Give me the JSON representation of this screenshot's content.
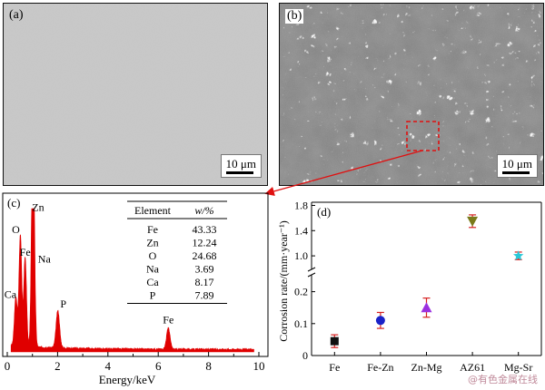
{
  "figure": {
    "panel_a": {
      "letter": "(a)",
      "scale_label": "10 μm"
    },
    "panel_b": {
      "letter": "(b)",
      "scale_label": "10 μm"
    },
    "panel_c": {
      "letter": "(c)"
    },
    "panel_d": {
      "letter": "(d)"
    },
    "watermark": "@有色金属在线"
  },
  "chart_data": [
    {
      "type": "line",
      "xlabel": "Energy/keV",
      "ylabel": "",
      "xlim": [
        0,
        10
      ],
      "x_ticks": [
        "0",
        "2",
        "4",
        "6",
        "8",
        "10"
      ],
      "grid": false,
      "color": "#e00000",
      "peaks": [
        {
          "label": "Ca",
          "x": 0.34,
          "y": 0.34
        },
        {
          "label": "O",
          "x": 0.52,
          "y": 0.78
        },
        {
          "label": "Fe",
          "x": 0.71,
          "y": 0.62
        },
        {
          "label": "Na",
          "x": 1.04,
          "y": 0.7
        },
        {
          "label": "Zn",
          "x": 1.01,
          "y": 0.96
        },
        {
          "label": "P",
          "x": 2.01,
          "y": 0.26
        },
        {
          "label": "Fe",
          "x": 6.4,
          "y": 0.15
        }
      ],
      "table": {
        "headers": [
          "Element",
          "w/%"
        ],
        "rows": [
          [
            "Fe",
            "43.33"
          ],
          [
            "Zn",
            "12.24"
          ],
          [
            "O",
            "24.68"
          ],
          [
            "Na",
            "3.69"
          ],
          [
            "Ca",
            "8.17"
          ],
          [
            "P",
            "7.89"
          ]
        ]
      }
    },
    {
      "type": "scatter",
      "ylabel": "Corrosion rate/(mm·year⁻¹)",
      "categories": [
        "Fe",
        "Fe-Zn",
        "Zn-Mg",
        "AZ61",
        "Mg-Sr"
      ],
      "values": [
        0.045,
        0.11,
        0.15,
        1.55,
        1.0
      ],
      "errors": [
        0.02,
        0.025,
        0.03,
        0.1,
        0.06
      ],
      "marker_colors": [
        "#111111",
        "#1a22c8",
        "#9b30e0",
        "#7a7a1a",
        "#28c8d8"
      ],
      "error_color": "#d62020",
      "markers": [
        "square",
        "circle",
        "triangle-up",
        "triangle-down",
        "star"
      ],
      "broken_axis": true,
      "y_ticks_lower": [
        "0",
        "0.1",
        "0.2"
      ],
      "y_ticks_upper": [
        "1.0",
        "1.4",
        "1.8"
      ],
      "ylim_lower": [
        0,
        0.25
      ],
      "ylim_upper": [
        0.8,
        1.85
      ],
      "grid": false
    }
  ]
}
